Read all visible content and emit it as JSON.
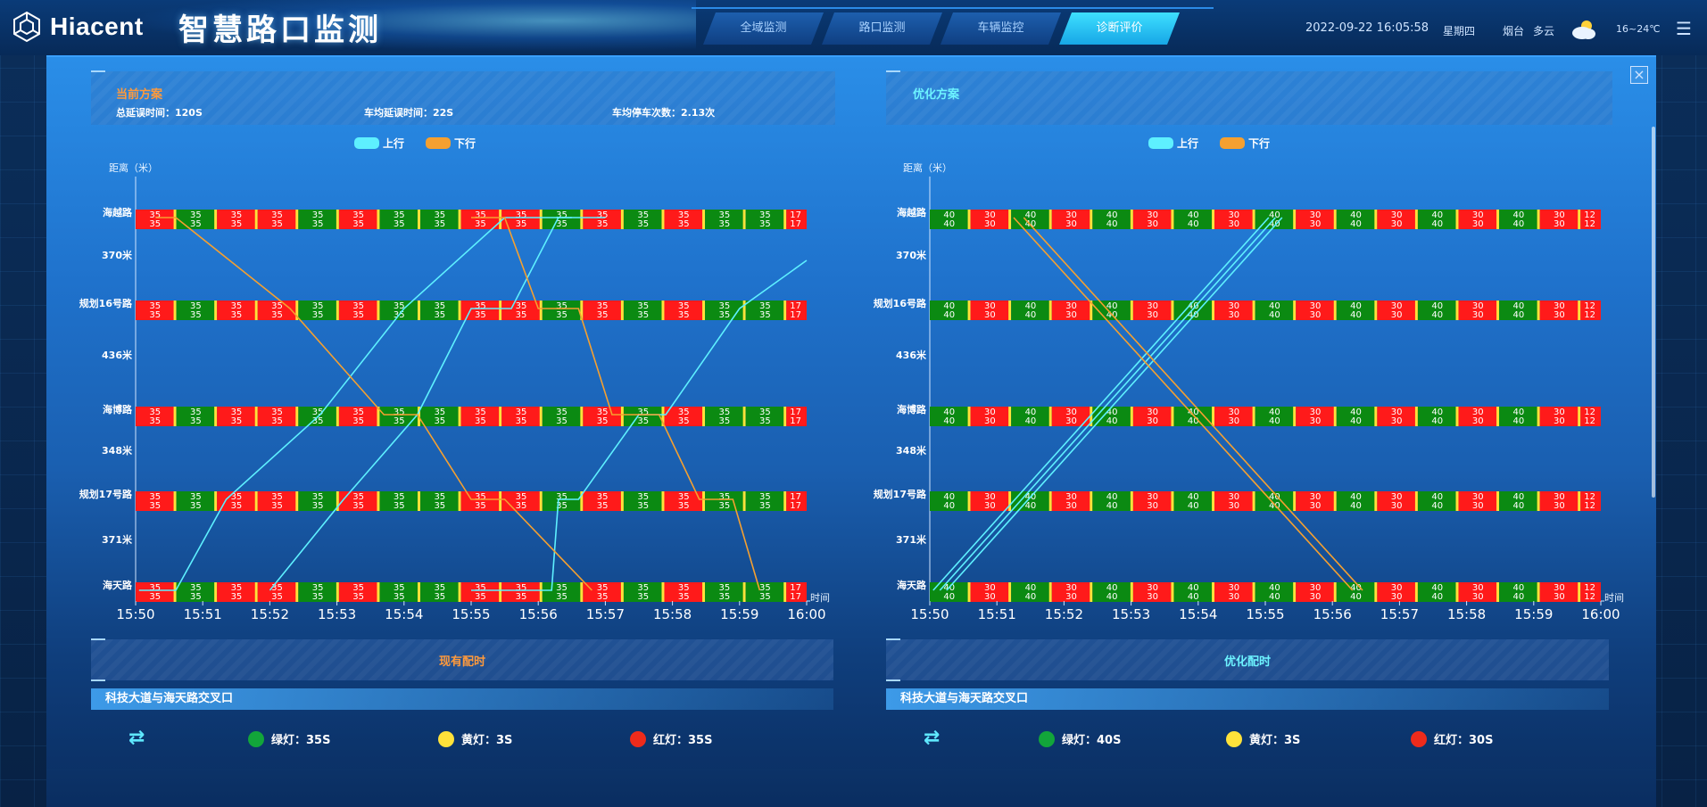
{
  "header": {
    "logo_text": "Hiacent",
    "title": "智慧路口监测",
    "nav_tabs": [
      {
        "label": "全域监测",
        "active": false
      },
      {
        "label": "路口监测",
        "active": false
      },
      {
        "label": "车辆监控",
        "active": false
      },
      {
        "label": "诊断评价",
        "active": true
      }
    ],
    "datetime": "2022-09-22 16:05:58",
    "weekday": "星期四",
    "city": "烟台",
    "weather": "多云",
    "temp": "16~24℃",
    "icons": [
      "logo-icon",
      "cloud-sun-icon",
      "menu-icon",
      "close-icon"
    ]
  },
  "current_plan": {
    "title": "当前方案",
    "total_delay": "总延误时间：120S",
    "avg_delay": "车均延误时间：22S",
    "avg_stops": "车均停车次数：2.13次"
  },
  "optimized_plan": {
    "title": "优化方案"
  },
  "legend": {
    "up": "上行",
    "down": "下行"
  },
  "colors": {
    "up": "#5ef0ff",
    "down": "#f5a030",
    "green": "#0b8a12",
    "red": "#ff1a1a",
    "yellow": "#ffe23a"
  },
  "chart_data": [
    {
      "type": "line",
      "title": "当前方案",
      "ylabel": "距离（米）",
      "xlabel": "时间",
      "x_ticks": [
        "15:50",
        "15:51",
        "15:52",
        "15:53",
        "15:54",
        "15:55",
        "15:56",
        "15:57",
        "15:58",
        "15:59",
        "16:00"
      ],
      "y_labels": [
        "海越路",
        "370米",
        "规划16号路",
        "436米",
        "海博路",
        "348米",
        "规划17号路",
        "371米",
        "海天路"
      ],
      "intersections": [
        "海越路",
        "规划16号路",
        "海博路",
        "规划17号路",
        "海天路"
      ],
      "signal_cycle": {
        "green": 35,
        "red": 35,
        "last_label": 17
      },
      "series": [
        {
          "name": "上行",
          "lines": 3
        },
        {
          "name": "下行",
          "lines": 1
        }
      ]
    },
    {
      "type": "line",
      "title": "优化方案",
      "ylabel": "距离（米）",
      "xlabel": "时间",
      "x_ticks": [
        "15:50",
        "15:51",
        "15:52",
        "15:53",
        "15:54",
        "15:55",
        "15:56",
        "15:57",
        "15:58",
        "15:59",
        "16:00"
      ],
      "y_labels": [
        "海越路",
        "370米",
        "规划16号路",
        "436米",
        "海博路",
        "348米",
        "规划17号路",
        "371米",
        "海天路"
      ],
      "intersections": [
        "海越路",
        "规划16号路",
        "海博路",
        "规划17号路",
        "海天路"
      ],
      "signal_cycle": {
        "green": 40,
        "red": 30,
        "last_label": 12
      },
      "series": [
        {
          "name": "上行",
          "lines": 3
        },
        {
          "name": "下行",
          "lines": 2
        }
      ]
    }
  ],
  "current_timing": {
    "title": "现有配时",
    "intersection": "科技大道与海天路交叉口",
    "green": "绿灯：35S",
    "yellow": "黄灯：3S",
    "red": "红灯：35S"
  },
  "optimized_timing": {
    "title": "优化配时",
    "intersection": "科技大道与海天路交叉口",
    "green": "绿灯：40S",
    "yellow": "黄灯：3S",
    "red": "红灯：30S"
  }
}
